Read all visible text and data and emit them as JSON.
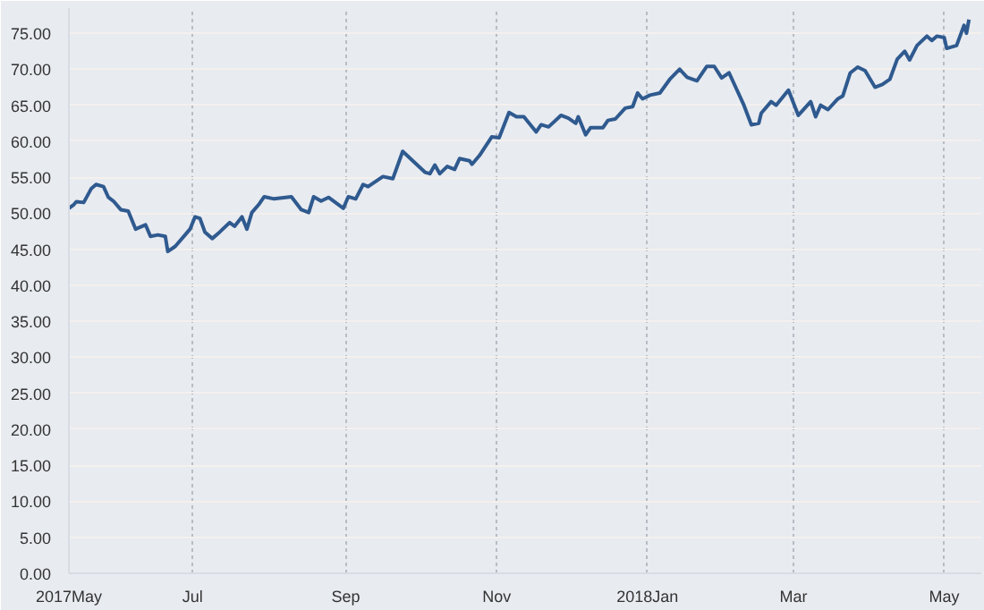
{
  "chart_data": {
    "type": "line",
    "x": [
      "2017-05-12",
      "2017-05-14",
      "2017-05-15",
      "2017-05-18",
      "2017-05-21",
      "2017-05-23",
      "2017-05-26",
      "2017-05-28",
      "2017-05-30",
      "2017-06-02",
      "2017-06-05",
      "2017-06-08",
      "2017-06-12",
      "2017-06-14",
      "2017-06-17",
      "2017-06-20",
      "2017-06-21",
      "2017-06-24",
      "2017-06-28",
      "2017-06-30",
      "2017-07-02",
      "2017-07-04",
      "2017-07-06",
      "2017-07-09",
      "2017-07-12",
      "2017-07-16",
      "2017-07-18",
      "2017-07-21",
      "2017-07-23",
      "2017-07-25",
      "2017-07-28",
      "2017-07-30",
      "2017-08-03",
      "2017-08-10",
      "2017-08-14",
      "2017-08-17",
      "2017-08-19",
      "2017-08-22",
      "2017-08-25",
      "2017-08-31",
      "2017-09-02",
      "2017-09-05",
      "2017-09-08",
      "2017-09-10",
      "2017-09-16",
      "2017-09-20",
      "2017-09-24",
      "2017-10-03",
      "2017-10-05",
      "2017-10-07",
      "2017-10-09",
      "2017-10-12",
      "2017-10-15",
      "2017-10-17",
      "2017-10-21",
      "2017-10-22",
      "2017-10-25",
      "2017-10-30",
      "2017-11-02",
      "2017-11-06",
      "2017-11-09",
      "2017-11-12",
      "2017-11-17",
      "2017-11-19",
      "2017-11-22",
      "2017-11-27",
      "2017-11-30",
      "2017-12-03",
      "2017-12-04",
      "2017-12-07",
      "2017-12-09",
      "2017-12-14",
      "2017-12-16",
      "2017-12-19",
      "2017-12-23",
      "2017-12-26",
      "2017-12-28",
      "2017-12-30",
      "2018-01-02",
      "2018-01-06",
      "2018-01-10",
      "2018-01-14",
      "2018-01-17",
      "2018-01-21",
      "2018-01-25",
      "2018-01-28",
      "2018-01-31",
      "2018-02-03",
      "2018-02-09",
      "2018-02-12",
      "2018-02-15",
      "2018-02-16",
      "2018-02-20",
      "2018-02-22",
      "2018-02-27",
      "2018-03-03",
      "2018-03-08",
      "2018-03-10",
      "2018-03-12",
      "2018-03-15",
      "2018-03-19",
      "2018-03-21",
      "2018-03-24",
      "2018-03-27",
      "2018-03-30",
      "2018-04-03",
      "2018-04-06",
      "2018-04-09",
      "2018-04-12",
      "2018-04-15",
      "2018-04-17",
      "2018-04-20",
      "2018-04-24",
      "2018-04-26",
      "2018-04-28",
      "2018-05-01",
      "2018-05-02",
      "2018-05-06",
      "2018-05-09",
      "2018-05-10",
      "2018-05-11"
    ],
    "series": [
      {
        "color": "#2f5a8f",
        "values": [
          50.7,
          51.2,
          51.6,
          51.5,
          53.4,
          54.0,
          53.7,
          52.2,
          51.7,
          50.5,
          50.3,
          47.8,
          48.4,
          46.8,
          47.0,
          46.8,
          44.7,
          45.4,
          47.0,
          47.8,
          49.5,
          49.3,
          47.4,
          46.5,
          47.4,
          48.7,
          48.2,
          49.5,
          47.8,
          50.1,
          51.3,
          52.3,
          52.0,
          52.3,
          50.5,
          50.1,
          52.3,
          51.7,
          52.2,
          50.7,
          52.3,
          52.0,
          54.0,
          53.7,
          55.1,
          54.8,
          58.6,
          55.7,
          55.5,
          56.7,
          55.5,
          56.5,
          56.1,
          57.6,
          57.3,
          56.8,
          58.0,
          60.6,
          60.5,
          64.0,
          63.4,
          63.4,
          61.3,
          62.3,
          62.0,
          63.6,
          63.2,
          62.5,
          63.4,
          60.9,
          61.9,
          61.9,
          62.9,
          63.1,
          64.6,
          64.8,
          66.7,
          65.9,
          66.4,
          66.7,
          68.6,
          70.0,
          68.9,
          68.4,
          70.4,
          70.4,
          68.8,
          69.5,
          65.0,
          62.3,
          62.5,
          63.9,
          65.5,
          65.0,
          67.1,
          63.6,
          65.5,
          63.4,
          65.0,
          64.4,
          65.9,
          66.3,
          69.5,
          70.3,
          69.8,
          67.5,
          67.9,
          68.6,
          71.4,
          72.5,
          71.3,
          73.3,
          74.6,
          74.0,
          74.6,
          74.4,
          72.9,
          73.3,
          76.1,
          75.0,
          76.9
        ]
      }
    ],
    "xlim": [
      "2017-05-12",
      "2018-05-16"
    ],
    "xticks": [
      {
        "value": "2017-05-12",
        "label": "2017May"
      },
      {
        "value": "2017-07-01",
        "label": "Jul"
      },
      {
        "value": "2017-09-01",
        "label": "Sep"
      },
      {
        "value": "2017-11-01",
        "label": "Nov"
      },
      {
        "value": "2018-01-01",
        "label": "2018Jan"
      },
      {
        "value": "2018-03-01",
        "label": "Mar"
      },
      {
        "value": "2018-05-01",
        "label": "May"
      }
    ],
    "ylim": [
      0,
      78.5
    ],
    "yticks": [
      {
        "value": 0,
        "label": "0.00"
      },
      {
        "value": 5,
        "label": "5.00"
      },
      {
        "value": 10,
        "label": "10.00"
      },
      {
        "value": 15,
        "label": "15.00"
      },
      {
        "value": 20,
        "label": "20.00"
      },
      {
        "value": 25,
        "label": "25.00"
      },
      {
        "value": 30,
        "label": "30.00"
      },
      {
        "value": 35,
        "label": "35.00"
      },
      {
        "value": 40,
        "label": "40.00"
      },
      {
        "value": 45,
        "label": "45.00"
      },
      {
        "value": 50,
        "label": "50.00"
      },
      {
        "value": 55,
        "label": "55.00"
      },
      {
        "value": 60,
        "label": "60.00"
      },
      {
        "value": 65,
        "label": "65.00"
      },
      {
        "value": 70,
        "label": "70.00"
      },
      {
        "value": 75,
        "label": "75.00"
      }
    ],
    "grid": true
  }
}
